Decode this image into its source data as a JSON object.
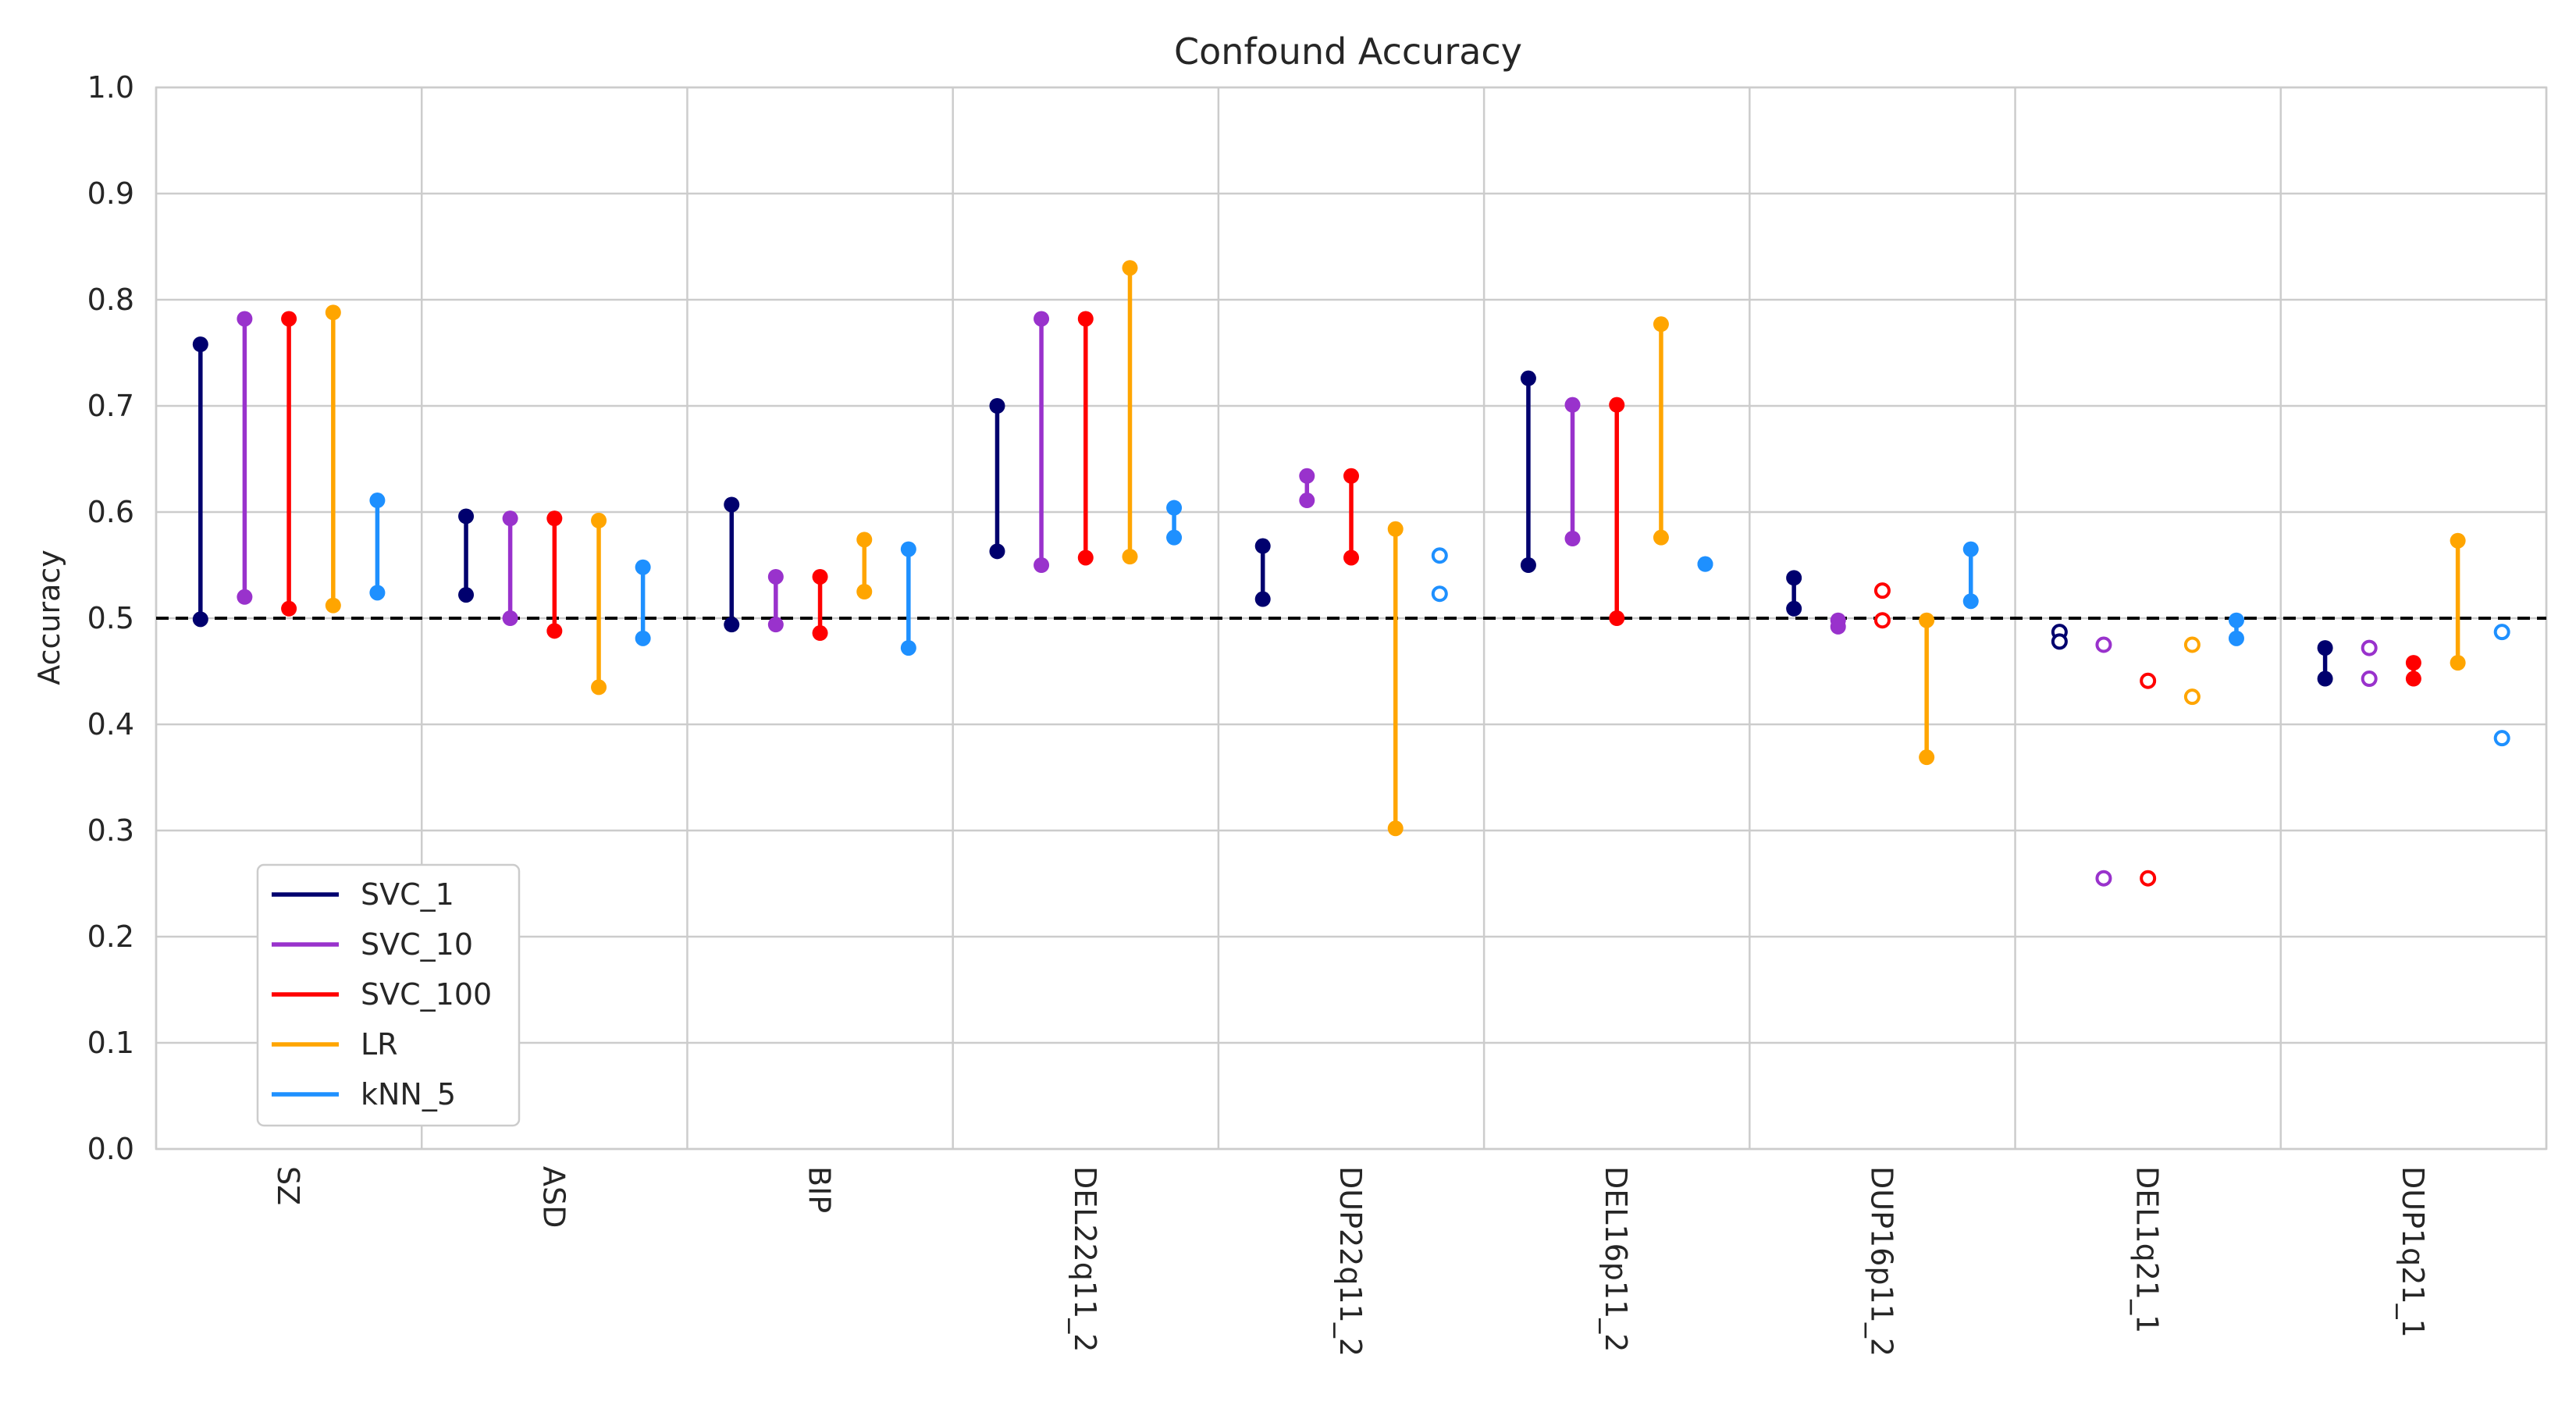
{
  "chart_data": {
    "type": "dumbbell",
    "title": "Confound Accuracy",
    "xlabel": "",
    "ylabel": "Accuracy",
    "ylim": [
      0,
      1.0
    ],
    "yticks": [
      "0.0",
      "0.1",
      "0.2",
      "0.3",
      "0.4",
      "0.5",
      "0.6",
      "0.7",
      "0.8",
      "0.9",
      "1.0"
    ],
    "grid": true,
    "legend_position": "lower-left",
    "reference_line": {
      "y": 0.5,
      "style": "dashed",
      "color": "#000000"
    },
    "categories": [
      "SZ",
      "ASD",
      "BIP",
      "DEL22q11_2",
      "DUP22q11_2",
      "DEL16p11_2",
      "DUP16p11_2",
      "DEL1q21_1",
      "DUP1q21_1"
    ],
    "series": [
      {
        "name": "SVC_1",
        "color": "#00006e",
        "points": [
          {
            "low": 0.499,
            "high": 0.758,
            "significant": true
          },
          {
            "low": 0.522,
            "high": 0.596,
            "significant": true
          },
          {
            "low": 0.494,
            "high": 0.607,
            "significant": true
          },
          {
            "low": 0.563,
            "high": 0.7,
            "significant": true
          },
          {
            "low": 0.518,
            "high": 0.568,
            "significant": true
          },
          {
            "low": 0.55,
            "high": 0.726,
            "significant": true
          },
          {
            "low": 0.509,
            "high": 0.538,
            "significant": true
          },
          {
            "low": 0.478,
            "high": 0.487,
            "significant": false
          },
          {
            "low": 0.443,
            "high": 0.472,
            "significant": true
          }
        ]
      },
      {
        "name": "SVC_10",
        "color": "#9932cc",
        "points": [
          {
            "low": 0.52,
            "high": 0.782,
            "significant": true
          },
          {
            "low": 0.5,
            "high": 0.594,
            "significant": true
          },
          {
            "low": 0.494,
            "high": 0.539,
            "significant": true
          },
          {
            "low": 0.55,
            "high": 0.782,
            "significant": true
          },
          {
            "low": 0.611,
            "high": 0.634,
            "significant": true
          },
          {
            "low": 0.575,
            "high": 0.701,
            "significant": true
          },
          {
            "low": 0.492,
            "high": 0.498,
            "significant": true
          },
          {
            "low": 0.255,
            "high": 0.475,
            "significant": false
          },
          {
            "low": 0.443,
            "high": 0.472,
            "significant": false
          }
        ]
      },
      {
        "name": "SVC_100",
        "color": "#ff0000",
        "points": [
          {
            "low": 0.509,
            "high": 0.782,
            "significant": true
          },
          {
            "low": 0.488,
            "high": 0.594,
            "significant": true
          },
          {
            "low": 0.486,
            "high": 0.539,
            "significant": true
          },
          {
            "low": 0.557,
            "high": 0.782,
            "significant": true
          },
          {
            "low": 0.557,
            "high": 0.634,
            "significant": true
          },
          {
            "low": 0.5,
            "high": 0.701,
            "significant": true
          },
          {
            "low": 0.498,
            "high": 0.526,
            "significant": false
          },
          {
            "low": 0.255,
            "high": 0.441,
            "significant": false
          },
          {
            "low": 0.443,
            "high": 0.458,
            "significant": true
          }
        ]
      },
      {
        "name": "LR",
        "color": "#ffa500",
        "points": [
          {
            "low": 0.512,
            "high": 0.788,
            "significant": true
          },
          {
            "low": 0.435,
            "high": 0.592,
            "significant": true
          },
          {
            "low": 0.525,
            "high": 0.574,
            "significant": true
          },
          {
            "low": 0.558,
            "high": 0.83,
            "significant": true
          },
          {
            "low": 0.302,
            "high": 0.584,
            "significant": true
          },
          {
            "low": 0.576,
            "high": 0.777,
            "significant": true
          },
          {
            "low": 0.369,
            "high": 0.498,
            "significant": true
          },
          {
            "low": 0.426,
            "high": 0.475,
            "significant": false
          },
          {
            "low": 0.458,
            "high": 0.573,
            "significant": true
          }
        ]
      },
      {
        "name": "kNN_5",
        "color": "#1e90ff",
        "points": [
          {
            "low": 0.524,
            "high": 0.611,
            "significant": true
          },
          {
            "low": 0.481,
            "high": 0.548,
            "significant": true
          },
          {
            "low": 0.472,
            "high": 0.565,
            "significant": true
          },
          {
            "low": 0.576,
            "high": 0.604,
            "significant": true
          },
          {
            "low": 0.523,
            "high": 0.559,
            "significant": false
          },
          {
            "low": 0.551,
            "high": 0.551,
            "significant": true
          },
          {
            "low": 0.516,
            "high": 0.565,
            "significant": true
          },
          {
            "low": 0.481,
            "high": 0.498,
            "significant": true
          },
          {
            "low": 0.387,
            "high": 0.487,
            "significant": false
          }
        ]
      }
    ]
  }
}
